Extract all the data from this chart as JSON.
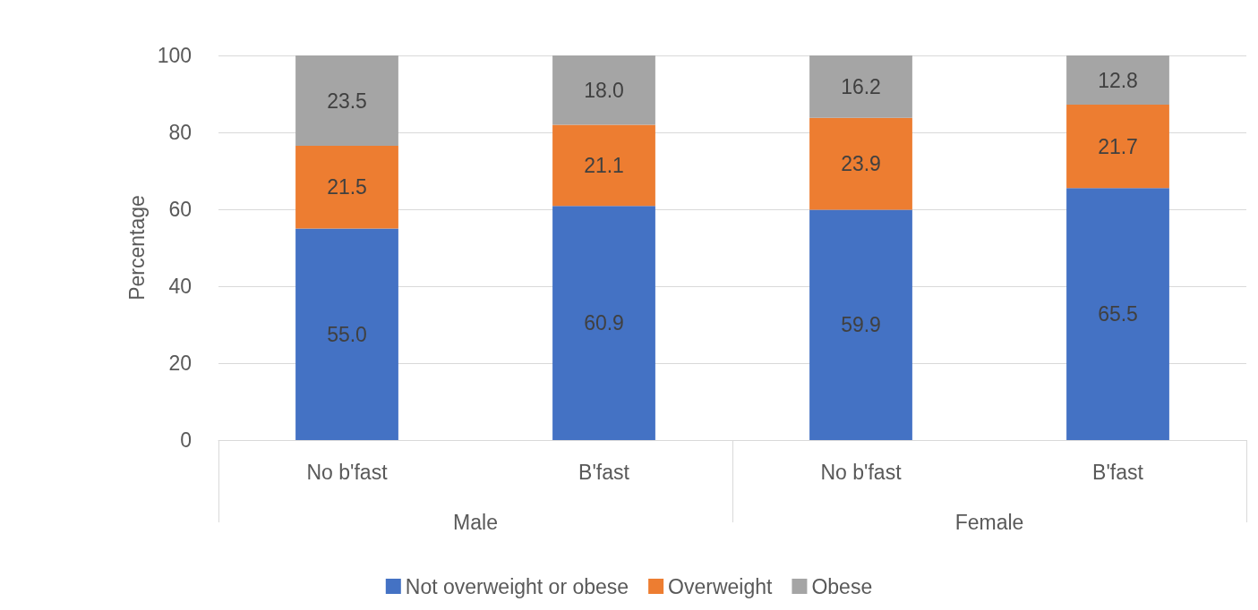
{
  "chart_data": {
    "type": "bar",
    "stacked": true,
    "ylabel": "Percentage",
    "categories": [
      "No b'fast",
      "B'fast",
      "No b'fast",
      "B'fast"
    ],
    "annotations": [
      "Male",
      "Female"
    ],
    "series": [
      {
        "name": "Not overweight or obese",
        "color": "#4472c4",
        "values": [
          55.0,
          60.9,
          59.9,
          65.5
        ],
        "value_labels": [
          "55.0",
          "60.9",
          "59.9",
          "65.5"
        ]
      },
      {
        "name": "Overweight",
        "color": "#ed7d31",
        "values": [
          21.5,
          21.1,
          23.9,
          21.7
        ],
        "value_labels": [
          "21.5",
          "21.1",
          "23.9",
          "21.7"
        ]
      },
      {
        "name": "Obese",
        "color": "#a5a5a5",
        "values": [
          23.5,
          18.0,
          16.2,
          12.8
        ],
        "value_labels": [
          "23.5",
          "18.0",
          "16.2",
          "12.8"
        ]
      }
    ],
    "ylim": [
      0,
      100
    ],
    "yticks": [
      0,
      20,
      40,
      60,
      80,
      100
    ],
    "grid": "y",
    "legend": "bottom"
  }
}
